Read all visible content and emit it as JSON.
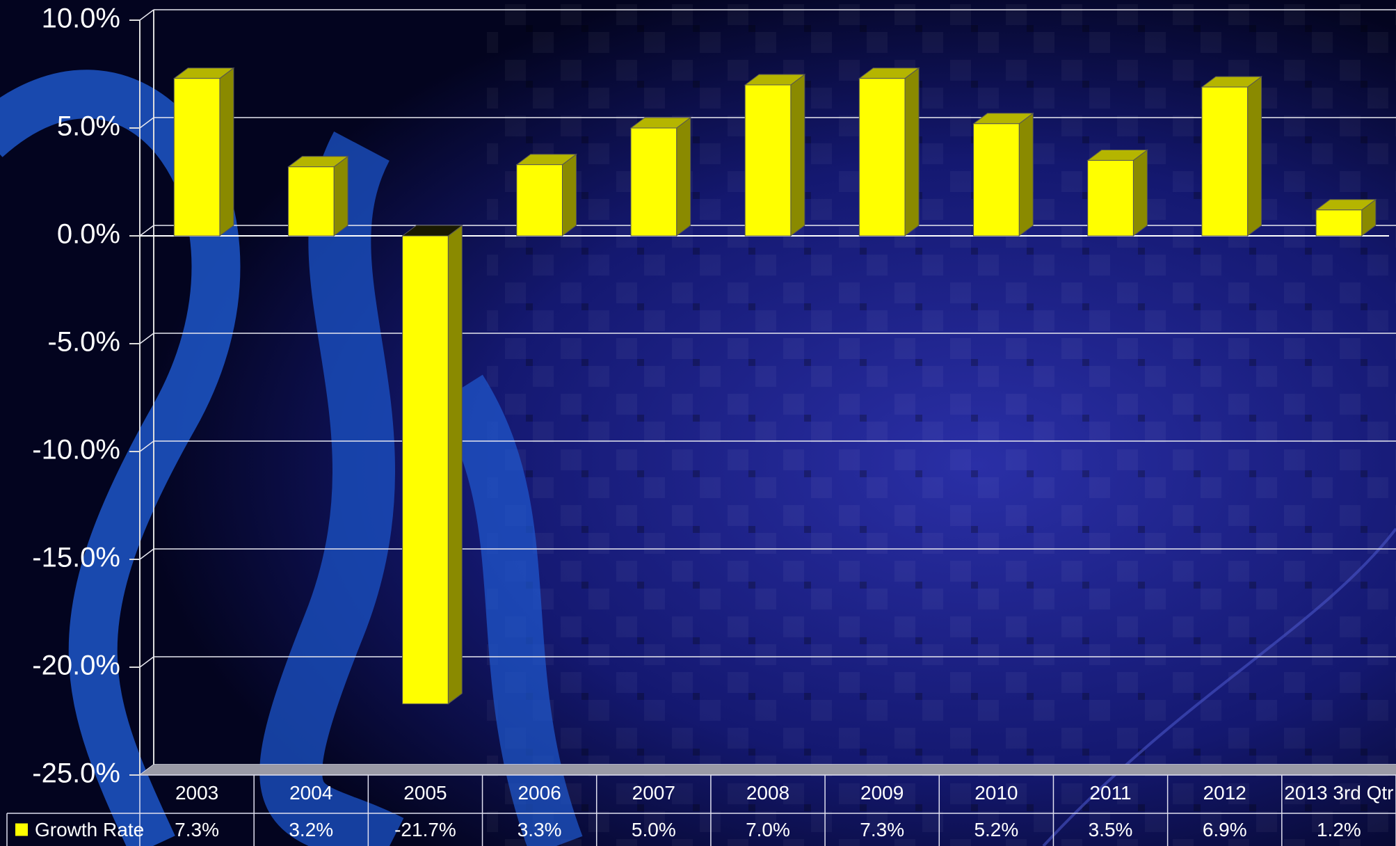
{
  "chart_data": {
    "type": "bar3d",
    "categories": [
      "2003",
      "2004",
      "2005",
      "2006",
      "2007",
      "2008",
      "2009",
      "2010",
      "2011",
      "2012",
      "2013 3rd Qtr"
    ],
    "series": [
      {
        "name": "Growth Rate",
        "color": "#ffff00",
        "values": [
          7.3,
          3.2,
          -21.7,
          3.3,
          5.0,
          7.0,
          7.3,
          5.2,
          3.5,
          6.9,
          1.2
        ],
        "value_labels": [
          "7.3%",
          "3.2%",
          "-21.7%",
          "3.3%",
          "5.0%",
          "7.0%",
          "7.3%",
          "5.2%",
          "3.5%",
          "6.9%",
          "1.2%"
        ]
      }
    ],
    "ylim": [
      -25,
      10
    ],
    "yticks": [
      {
        "value": -25,
        "label": "-25.0%"
      },
      {
        "value": -20,
        "label": "-20.0%"
      },
      {
        "value": -15,
        "label": "-15.0%"
      },
      {
        "value": -10,
        "label": "-10.0%"
      },
      {
        "value": -5,
        "label": "-5.0%"
      },
      {
        "value": 0,
        "label": "0.0%"
      },
      {
        "value": 5,
        "label": "5.0%"
      },
      {
        "value": 10,
        "label": "10.0%"
      }
    ],
    "grid": true,
    "data_table": true
  }
}
